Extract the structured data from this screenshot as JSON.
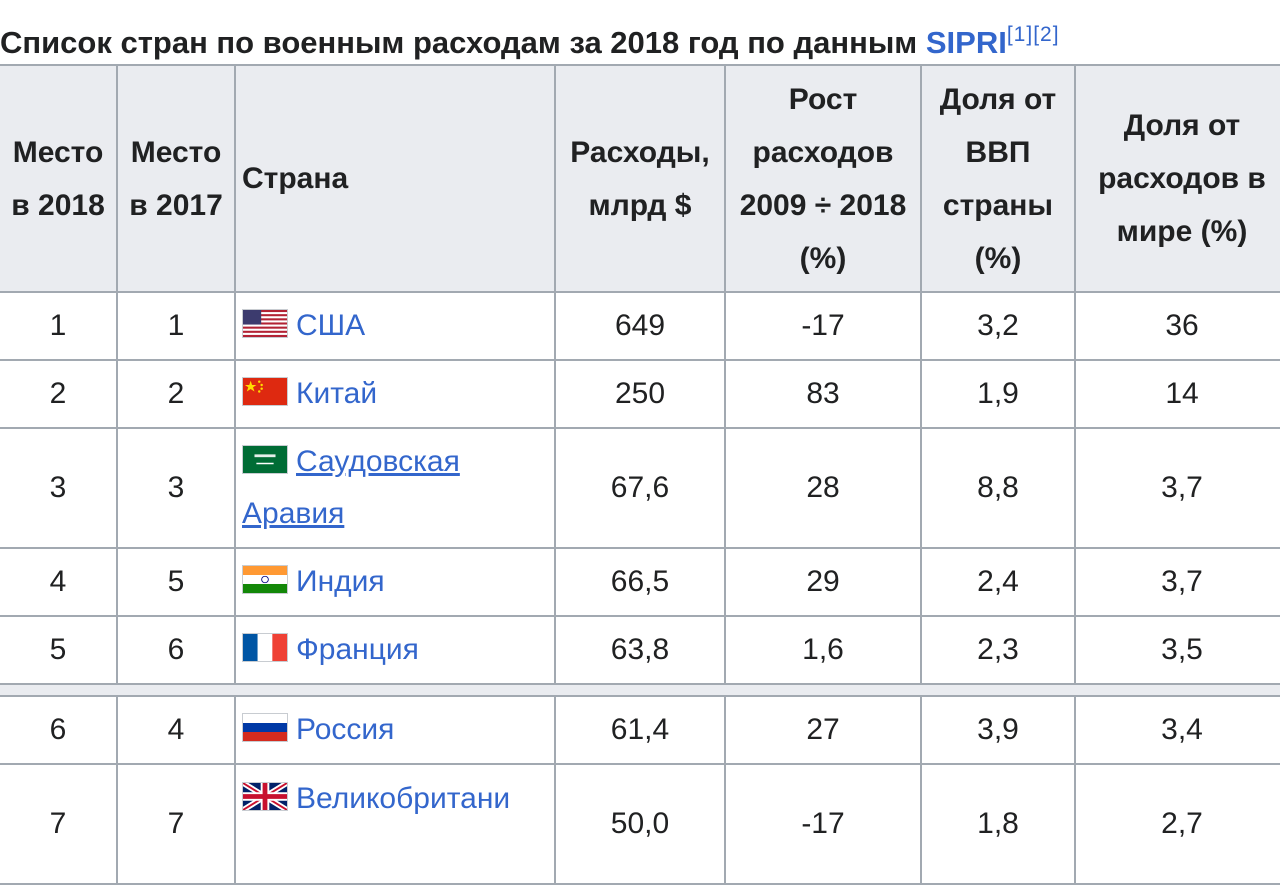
{
  "caption": {
    "text": "Список стран по военным расходам за 2018 год по данным",
    "link": "SIPRI",
    "refs": "[1][2]"
  },
  "headers": {
    "rank2018": "Место в 2018",
    "rank2017": "Место в 2017",
    "country": "Страна",
    "spending": "Расходы, млрд $",
    "growth": "Рост расходов 2009 ÷ 2018 (%)",
    "gdp_share": "Доля от ВВП страны (%)",
    "world_share": "Доля от расходов в мире (%)"
  },
  "rows": [
    {
      "rank2018": "1",
      "rank2017": "1",
      "country": "США",
      "flag": "usa-flag-icon",
      "spending": "649",
      "growth": "-17",
      "gdp_share": "3,2",
      "world_share": "36"
    },
    {
      "rank2018": "2",
      "rank2017": "2",
      "country": "Китай",
      "flag": "china-flag-icon",
      "spending": "250",
      "growth": "83",
      "gdp_share": "1,9",
      "world_share": "14"
    },
    {
      "rank2018": "3",
      "rank2017": "3",
      "country": "Саудовская Аравия",
      "flag": "saudi-arabia-flag-icon",
      "spending": "67,6",
      "growth": "28",
      "gdp_share": "8,8",
      "world_share": "3,7"
    },
    {
      "rank2018": "4",
      "rank2017": "5",
      "country": "Индия",
      "flag": "india-flag-icon",
      "spending": "66,5",
      "growth": "29",
      "gdp_share": "2,4",
      "world_share": "3,7"
    },
    {
      "rank2018": "5",
      "rank2017": "6",
      "country": "Франция",
      "flag": "france-flag-icon",
      "spending": "63,8",
      "growth": "1,6",
      "gdp_share": "2,3",
      "world_share": "3,5"
    },
    {
      "rank2018": "6",
      "rank2017": "4",
      "country": "Россия",
      "flag": "russia-flag-icon",
      "spending": "61,4",
      "growth": "27",
      "gdp_share": "3,9",
      "world_share": "3,4"
    },
    {
      "rank2018": "7",
      "rank2017": "7",
      "country": "Великобритани",
      "flag": "uk-flag-icon",
      "spending": "50,0",
      "growth": "-17",
      "gdp_share": "1,8",
      "world_share": "2,7"
    }
  ],
  "colors": {
    "link": "#3366cc",
    "header_bg": "#eaecf0",
    "border": "#a2a9b1",
    "text": "#202122"
  }
}
